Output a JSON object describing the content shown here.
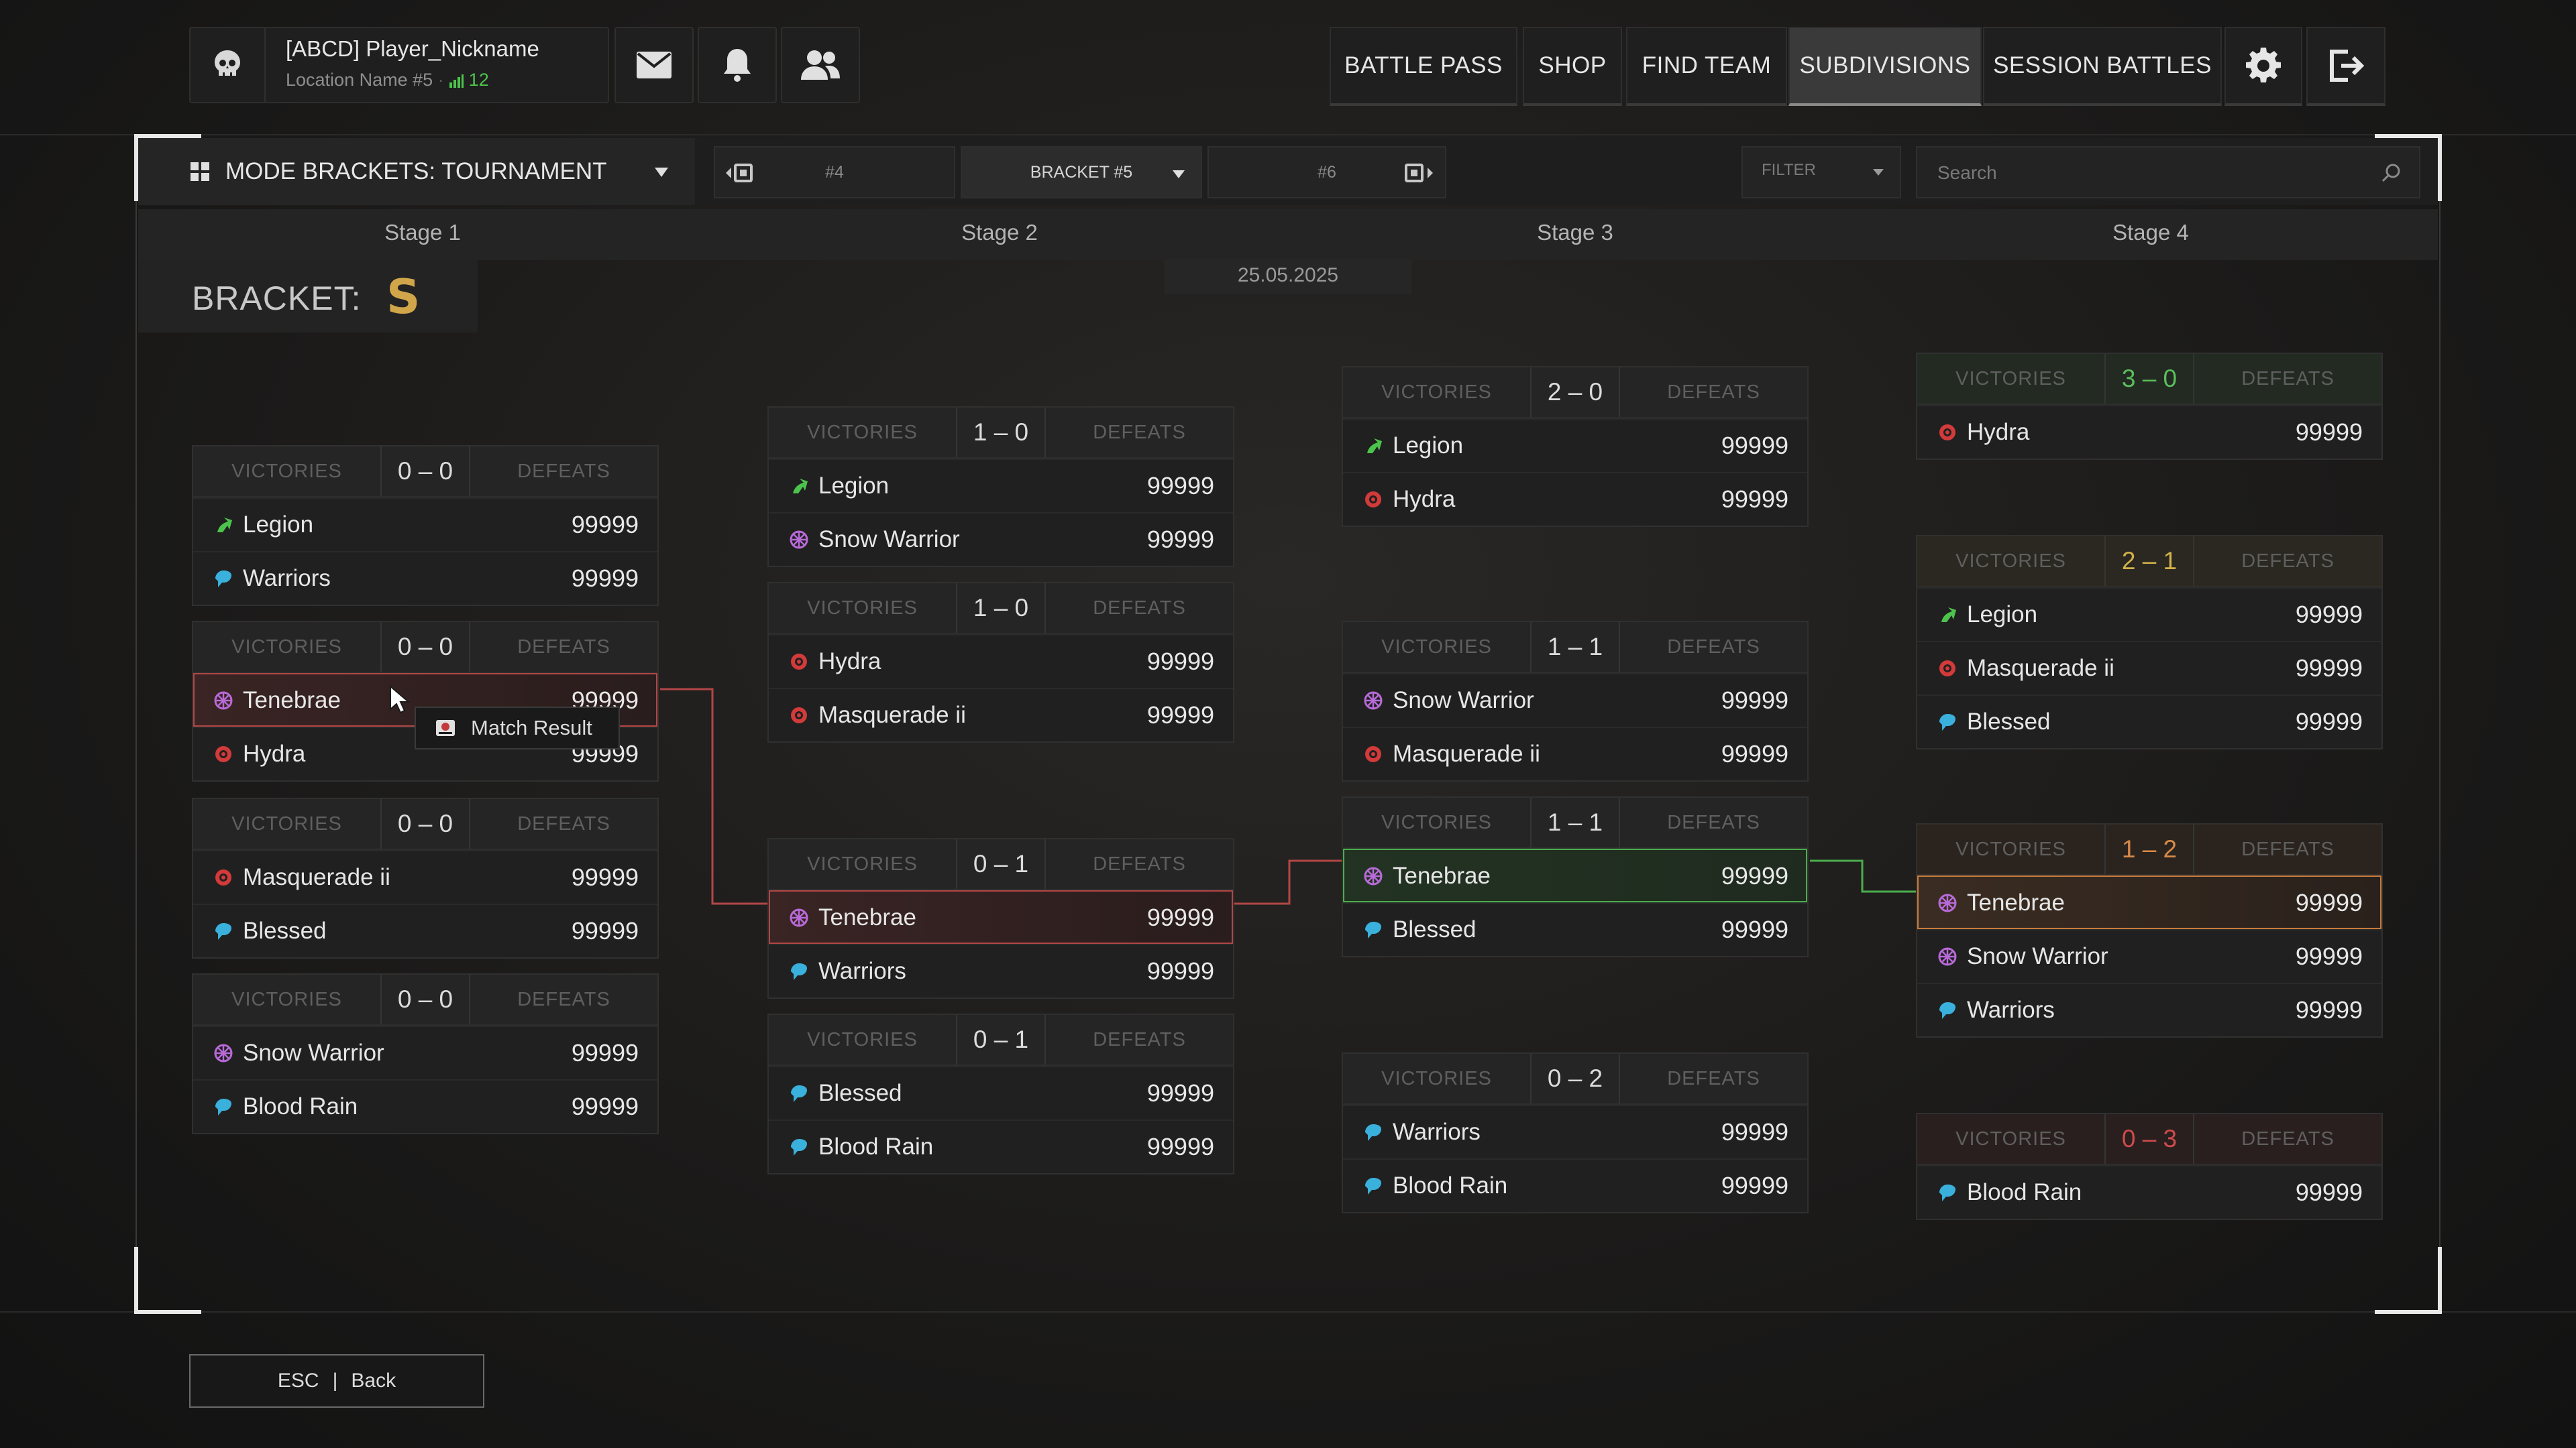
{
  "profile": {
    "name": "[ABCD] Player_Nickname",
    "location": "Location Name #5",
    "signal": "12"
  },
  "nav": [
    "BATTLE PASS",
    "SHOP",
    "FIND TEAM",
    "SUBDIVISIONS",
    "SESSION BATTLES"
  ],
  "nav_active": "SUBDIVISIONS",
  "toolbar": {
    "mode": "MODE BRACKETS: TOURNAMENT",
    "prev": "#4",
    "current": "BRACKET #5",
    "next": "#6",
    "filter": "FILTER",
    "search_placeholder": "Search"
  },
  "stages": [
    "Stage 1",
    "Stage 2",
    "Stage 3",
    "Stage 4"
  ],
  "bracket": {
    "label": "BRACKET:",
    "symbol": "S"
  },
  "date": "25.05.2025",
  "labels": {
    "victories": "VICTORIES",
    "defeats": "DEFEATS"
  },
  "tooltip": "Match Result",
  "esc": {
    "key": "ESC",
    "sep": "|",
    "label": "Back"
  },
  "colors": {
    "legion": "#4cc44c",
    "warriors": "#3ab0dc",
    "hydra": "#d33a3a",
    "tenebrae": "#b86ad8"
  },
  "cards": {
    "s1a": {
      "score": "0 – 0",
      "rows": [
        {
          "team": "Legion",
          "score": "99999"
        },
        {
          "team": "Warriors",
          "score": "99999"
        }
      ]
    },
    "s1b": {
      "score": "0 – 0",
      "rows": [
        {
          "team": "Tenebrae",
          "score": "99999"
        },
        {
          "team": "Hydra",
          "score": "99999"
        }
      ]
    },
    "s1c": {
      "score": "0 – 0",
      "rows": [
        {
          "team": "Masquerade ii",
          "score": "99999"
        },
        {
          "team": "Blessed",
          "score": "99999"
        }
      ]
    },
    "s1d": {
      "score": "0 – 0",
      "rows": [
        {
          "team": "Snow Warrior",
          "score": "99999"
        },
        {
          "team": "Blood Rain",
          "score": "99999"
        }
      ]
    },
    "s2a": {
      "score": "1 – 0",
      "rows": [
        {
          "team": "Legion",
          "score": "99999"
        },
        {
          "team": "Snow Warrior",
          "score": "99999"
        }
      ]
    },
    "s2b": {
      "score": "1 – 0",
      "rows": [
        {
          "team": "Hydra",
          "score": "99999"
        },
        {
          "team": "Masquerade ii",
          "score": "99999"
        }
      ]
    },
    "s2c": {
      "score": "0 – 1",
      "rows": [
        {
          "team": "Tenebrae",
          "score": "99999"
        },
        {
          "team": "Warriors",
          "score": "99999"
        }
      ]
    },
    "s2d": {
      "score": "0 – 1",
      "rows": [
        {
          "team": "Blessed",
          "score": "99999"
        },
        {
          "team": "Blood Rain",
          "score": "99999"
        }
      ]
    },
    "s3a": {
      "score": "2 – 0",
      "rows": [
        {
          "team": "Legion",
          "score": "99999"
        },
        {
          "team": "Hydra",
          "score": "99999"
        }
      ]
    },
    "s3b": {
      "score": "1 – 1",
      "rows": [
        {
          "team": "Snow Warrior",
          "score": "99999"
        },
        {
          "team": "Masquerade ii",
          "score": "99999"
        }
      ]
    },
    "s3c": {
      "score": "1 – 1",
      "rows": [
        {
          "team": "Tenebrae",
          "score": "99999"
        },
        {
          "team": "Blessed",
          "score": "99999"
        }
      ]
    },
    "s3d": {
      "score": "0 – 2",
      "rows": [
        {
          "team": "Warriors",
          "score": "99999"
        },
        {
          "team": "Blood Rain",
          "score": "99999"
        }
      ]
    },
    "s4a": {
      "score": "3 – 0",
      "rows": [
        {
          "team": "Hydra",
          "score": "99999"
        }
      ]
    },
    "s4b": {
      "score": "2 – 1",
      "rows": [
        {
          "team": "Legion",
          "score": "99999"
        },
        {
          "team": "Masquerade ii",
          "score": "99999"
        },
        {
          "team": "Blessed",
          "score": "99999"
        }
      ]
    },
    "s4c": {
      "score": "1 – 2",
      "rows": [
        {
          "team": "Tenebrae",
          "score": "99999"
        },
        {
          "team": "Snow Warrior",
          "score": "99999"
        },
        {
          "team": "Warriors",
          "score": "99999"
        }
      ]
    },
    "s4d": {
      "score": "0 – 3",
      "rows": [
        {
          "team": "Blood Rain",
          "score": "99999"
        }
      ]
    }
  }
}
